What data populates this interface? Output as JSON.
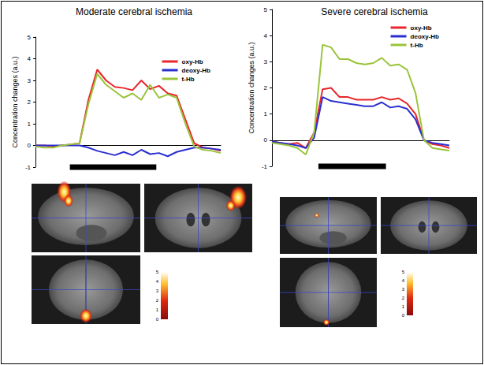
{
  "chart_data": [
    {
      "type": "line",
      "title": "Moderate cerebral ischemia",
      "y_label": "Concentration changes (a.u.)",
      "x": [
        0,
        1,
        2,
        3,
        4,
        5,
        6,
        7,
        8,
        9,
        10,
        11,
        12,
        13,
        14,
        15,
        16,
        17,
        18,
        19,
        20,
        21
      ],
      "xlim": [
        0,
        21
      ],
      "ylim": [
        -1,
        5
      ],
      "yticks": [
        -1,
        0,
        1,
        2,
        3,
        4,
        5
      ],
      "tick_labels": "y",
      "legend": "upper right",
      "stimulus": [
        3.9,
        13.7
      ],
      "series": [
        {
          "name": "oxy-Hb",
          "color": "#e8262b",
          "values": [
            0,
            0,
            -0.05,
            0,
            0.05,
            0.1,
            2.1,
            3.5,
            3.0,
            2.7,
            2.65,
            2.55,
            3.0,
            2.6,
            2.75,
            2.4,
            2.3,
            1.2,
            0.1,
            -0.1,
            -0.15,
            -0.25
          ]
        },
        {
          "name": "deoxy-Hb",
          "color": "#2a2fd0",
          "values": [
            0,
            0,
            0,
            0,
            0,
            0,
            -0.1,
            -0.25,
            -0.35,
            -0.45,
            -0.3,
            -0.45,
            -0.2,
            -0.4,
            -0.35,
            -0.5,
            -0.3,
            -0.2,
            -0.1,
            -0.1,
            -0.15,
            -0.2
          ]
        },
        {
          "name": "t-Hb",
          "color": "#9ac43a",
          "values": [
            -0.05,
            -0.1,
            -0.1,
            0,
            0.05,
            0.1,
            1.9,
            3.3,
            2.8,
            2.5,
            2.2,
            2.4,
            2.1,
            2.8,
            2.2,
            2.35,
            2.2,
            1.0,
            -0.05,
            -0.2,
            -0.25,
            -0.35
          ]
        }
      ],
      "colorbar": {
        "range": [
          0,
          5
        ],
        "ticks": [
          0,
          1,
          2,
          3,
          4,
          5
        ]
      }
    },
    {
      "type": "line",
      "title": "Severe cerebral ischemia",
      "y_label": "Concentration changes (a.u.)",
      "x": [
        0,
        1,
        2,
        3,
        4,
        5,
        6,
        7,
        8,
        9,
        10,
        11,
        12,
        13,
        14,
        15,
        16,
        17,
        18,
        19,
        20,
        21
      ],
      "xlim": [
        0,
        21
      ],
      "ylim": [
        -1,
        5
      ],
      "yticks": [
        -1,
        0,
        1,
        2,
        3,
        4,
        5
      ],
      "tick_labels": "y",
      "legend": "upper right",
      "stimulus": [
        5.5,
        13.5
      ],
      "series": [
        {
          "name": "oxy-Hb",
          "color": "#e8262b",
          "values": [
            -0.05,
            -0.1,
            -0.15,
            -0.1,
            -0.3,
            0.3,
            1.95,
            2.0,
            1.65,
            1.65,
            1.55,
            1.55,
            1.55,
            1.65,
            1.55,
            1.6,
            1.4,
            1.0,
            0.0,
            -0.15,
            -0.2,
            -0.3
          ]
        },
        {
          "name": "deoxy-Hb",
          "color": "#2a2fd0",
          "values": [
            -0.05,
            -0.1,
            -0.15,
            -0.2,
            -0.3,
            0.1,
            1.65,
            1.5,
            1.45,
            1.4,
            1.35,
            1.3,
            1.3,
            1.45,
            1.25,
            1.3,
            1.2,
            0.8,
            0.0,
            -0.1,
            -0.15,
            -0.2
          ]
        },
        {
          "name": "t-Hb",
          "color": "#9ac43a",
          "values": [
            -0.1,
            -0.15,
            -0.2,
            -0.3,
            -0.55,
            0.3,
            3.65,
            3.55,
            3.1,
            3.1,
            2.95,
            2.9,
            2.95,
            3.15,
            2.85,
            2.9,
            2.7,
            1.8,
            0.0,
            -0.3,
            -0.35,
            -0.4
          ]
        }
      ],
      "colorbar": {
        "range": [
          0,
          5
        ],
        "ticks": [
          0,
          1,
          2,
          3,
          4,
          5
        ]
      }
    }
  ]
}
